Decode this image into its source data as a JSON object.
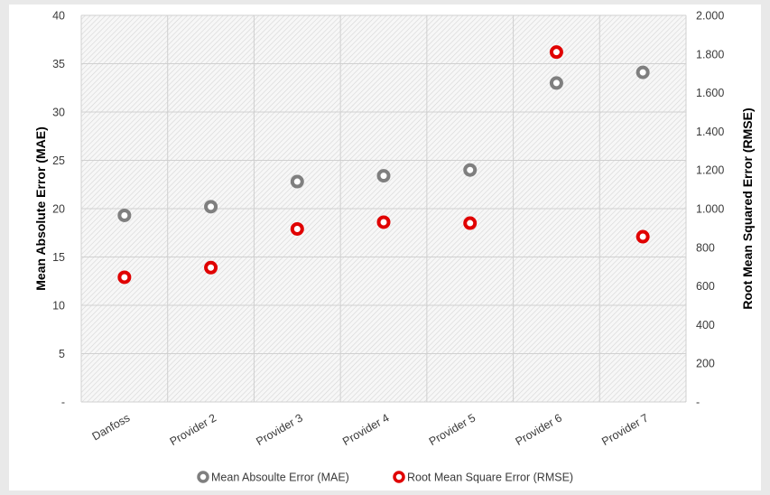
{
  "chart_data": {
    "type": "scatter",
    "categories": [
      "Danfoss",
      "Provider 2",
      "Provider 3",
      "Provider 4",
      "Provider 5",
      "Provider 6",
      "Provider 7"
    ],
    "series": [
      {
        "name": "Mean Absoulte Error (MAE)",
        "axis": "left",
        "color": "#7f7f7f",
        "values": [
          19.3,
          20.2,
          22.8,
          23.4,
          24.0,
          33.0,
          34.1
        ]
      },
      {
        "name": "Root Mean Square Error (RMSE)",
        "axis": "right",
        "color": "#e00000",
        "values": [
          645,
          695,
          895,
          930,
          925,
          1810,
          855
        ]
      }
    ],
    "ylabel": "Mean Absolute Error (MAE)",
    "y2label": "Root Mean Squared Error (RMSE)",
    "ylim": [
      0,
      40
    ],
    "y2lim": [
      0,
      2000
    ],
    "yticks": [
      {
        "v": 0,
        "label": "-"
      },
      {
        "v": 5,
        "label": "5"
      },
      {
        "v": 10,
        "label": "10"
      },
      {
        "v": 15,
        "label": "15"
      },
      {
        "v": 20,
        "label": "20"
      },
      {
        "v": 25,
        "label": "25"
      },
      {
        "v": 30,
        "label": "30"
      },
      {
        "v": 35,
        "label": "35"
      },
      {
        "v": 40,
        "label": "40"
      }
    ],
    "y2ticks": [
      {
        "v": 0,
        "label": "-"
      },
      {
        "v": 200,
        "label": "200"
      },
      {
        "v": 400,
        "label": "400"
      },
      {
        "v": 600,
        "label": "600"
      },
      {
        "v": 800,
        "label": "800"
      },
      {
        "v": 1000,
        "label": "1.000"
      },
      {
        "v": 1200,
        "label": "1.200"
      },
      {
        "v": 1400,
        "label": "1.400"
      },
      {
        "v": 1600,
        "label": "1.600"
      },
      {
        "v": 1800,
        "label": "1.800"
      },
      {
        "v": 2000,
        "label": "2.000"
      }
    ],
    "grid": true,
    "legend": "bottom"
  }
}
